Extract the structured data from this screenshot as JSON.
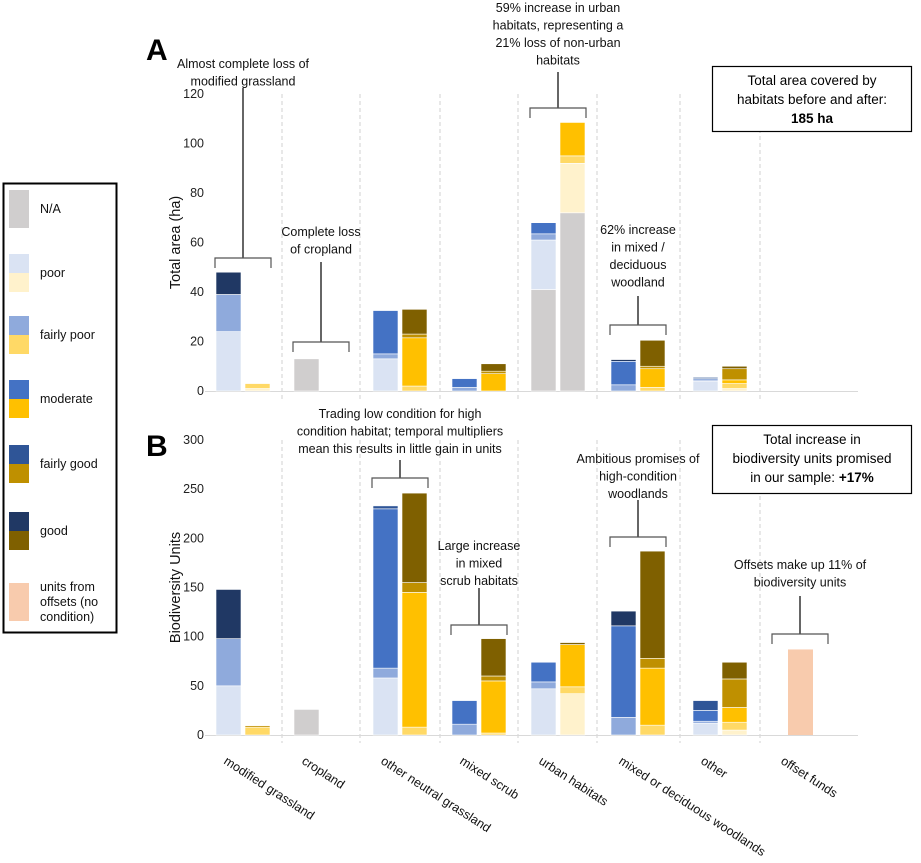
{
  "colors": {
    "before": {
      "N/A": "#D0CECE",
      "poor": "#DAE3F3",
      "fairly poor": "#8FAADC",
      "moderate": "#4472C4",
      "fairly good": "#2F5597",
      "good": "#203864"
    },
    "after": {
      "N/A": "#D0CECE",
      "poor": "#FFF2CC",
      "fairly poor": "#FFD966",
      "moderate": "#FFC000",
      "fairly good": "#BF9000",
      "good": "#7F6000"
    },
    "offsets": "#F8CBAD"
  },
  "legend": {
    "placement": "left",
    "items": [
      {
        "label": "N/A",
        "key": "N/A"
      },
      {
        "label": "poor",
        "key": "poor"
      },
      {
        "label": "fairly poor",
        "key": "fairly poor"
      },
      {
        "label": "moderate",
        "key": "moderate"
      },
      {
        "label": "fairly good",
        "key": "fairly good"
      },
      {
        "label": "good",
        "key": "good"
      },
      {
        "label": "units from offsets (no condition)",
        "lines": [
          "units from",
          "offsets (no",
          "condition)"
        ],
        "key": "offsets"
      }
    ]
  },
  "chart_data": [
    {
      "panel": "A",
      "type": "bar",
      "stacked": true,
      "ylabel": "Total area (ha)",
      "ylim": [
        0,
        120
      ],
      "yticks": [
        0,
        20,
        40,
        60,
        80,
        100,
        120
      ],
      "grid": false,
      "categories": [
        "modified grassland",
        "cropland",
        "other neutral grassland",
        "mixed scrub",
        "urban habitats",
        "mixed or deciduous woodlands",
        "other",
        "offset funds"
      ],
      "series_order": [
        "N/A",
        "poor",
        "fairly poor",
        "moderate",
        "fairly good",
        "good"
      ],
      "before": [
        {
          "poor": 24,
          "fairly poor": 15,
          "good": 9
        },
        {
          "N/A": 13
        },
        {
          "poor": 13,
          "fairly poor": 2,
          "moderate": 17.5
        },
        {
          "fairly poor": 1.5,
          "moderate": 3.5
        },
        {
          "N/A": 41,
          "poor": 20,
          "fairly poor": 2.5,
          "moderate": 4.5
        },
        {
          "fairly poor": 2.5,
          "moderate": 9.5,
          "good": 0.7
        },
        {
          "poor": 4,
          "fairly poor": 0.5,
          "moderate": 0.5,
          "fairly good": 0.5
        },
        {}
      ],
      "after": [
        {
          "poor": 1,
          "fairly poor": 2
        },
        {},
        {
          "fairly poor": 2,
          "moderate": 19.5,
          "fairly good": 1.5,
          "good": 10
        },
        {
          "moderate": 7,
          "fairly good": 1,
          "good": 3
        },
        {
          "N/A": 72,
          "poor": 20,
          "fairly poor": 3,
          "moderate": 13.5
        },
        {
          "fairly poor": 1.5,
          "moderate": 7.5,
          "fairly good": 1,
          "good": 10.5
        },
        {
          "poor": 1,
          "fairly poor": 2,
          "moderate": 1.5,
          "fairly good": 4.5,
          "good": 1
        },
        {}
      ],
      "annotations": [
        {
          "lines": [
            "Almost complete loss of",
            "modified grassland"
          ],
          "category": 0
        },
        {
          "lines": [
            "Complete loss",
            "of cropland"
          ],
          "category": 1
        },
        {
          "lines": [
            "59% increase in urban",
            "habitats, representing a",
            "21% loss of non-urban",
            "habitats"
          ],
          "category": 4
        },
        {
          "lines": [
            "62% increase",
            "in mixed /",
            "deciduous",
            "woodland"
          ],
          "category": 5
        }
      ],
      "summary_box": {
        "lines": [
          "Total area covered by",
          "habitats before and after:"
        ],
        "value": "185 ha"
      }
    },
    {
      "panel": "B",
      "type": "bar",
      "stacked": true,
      "ylabel": "Biodiversity Units",
      "ylim": [
        0,
        300
      ],
      "yticks": [
        0,
        50,
        100,
        150,
        200,
        250,
        300
      ],
      "grid": false,
      "categories": [
        "modified grassland",
        "cropland",
        "other neutral grassland",
        "mixed scrub",
        "urban habitats",
        "mixed or deciduous woodlands",
        "other",
        "offset funds"
      ],
      "series_order": [
        "N/A",
        "poor",
        "fairly poor",
        "moderate",
        "fairly good",
        "good"
      ],
      "before": [
        {
          "poor": 50,
          "fairly poor": 48,
          "good": 50
        },
        {
          "N/A": 26
        },
        {
          "poor": 58,
          "fairly poor": 10,
          "moderate": 162,
          "fairly good": 3
        },
        {
          "fairly poor": 11,
          "moderate": 24
        },
        {
          "poor": 47,
          "fairly poor": 7,
          "moderate": 20
        },
        {
          "fairly poor": 18,
          "moderate": 93,
          "good": 15
        },
        {
          "poor": 12,
          "fairly poor": 2,
          "moderate": 11,
          "fairly good": 10
        },
        {}
      ],
      "after": [
        {
          "fairly poor": 8,
          "fairly good": 1.5
        },
        {},
        {
          "fairly poor": 8,
          "moderate": 137,
          "fairly good": 10,
          "good": 91
        },
        {
          "fairly poor": 2,
          "moderate": 53,
          "fairly good": 5,
          "good": 38
        },
        {
          "poor": 42,
          "fairly poor": 7,
          "moderate": 43,
          "good": 2
        },
        {
          "fairly poor": 10,
          "moderate": 58,
          "fairly good": 10,
          "good": 109
        },
        {
          "poor": 5,
          "fairly poor": 8,
          "moderate": 15,
          "fairly good": 29,
          "good": 17
        },
        {}
      ],
      "offsets": [
        0,
        0,
        0,
        0,
        0,
        0,
        0,
        87
      ],
      "annotations": [
        {
          "lines": [
            "Trading low condition for high",
            "condition habitat; temporal multipliers",
            "mean this results in little gain in units"
          ],
          "category": 2
        },
        {
          "lines": [
            "Large increase",
            "in mixed",
            "scrub habitats"
          ],
          "category": 3
        },
        {
          "lines": [
            "Ambitious promises of",
            "high-condition",
            "woodlands"
          ],
          "category": 5
        },
        {
          "lines": [
            "Offsets make up 11% of",
            "biodiversity units"
          ],
          "category": 7
        }
      ],
      "summary_box": {
        "lines": [
          "Total increase in",
          "biodiversity units promised"
        ],
        "prefix": "in our sample: ",
        "value": "+17%"
      }
    }
  ]
}
